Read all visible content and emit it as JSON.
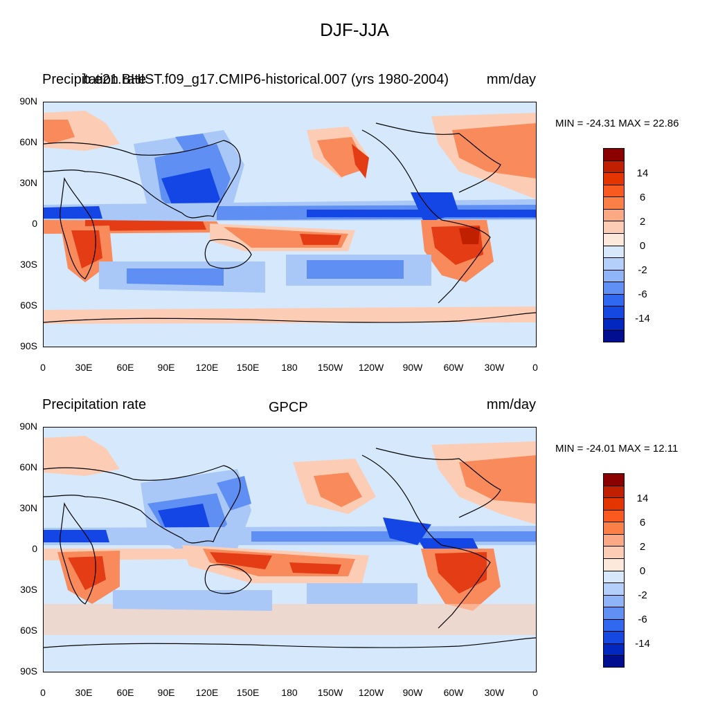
{
  "title": "DJF-JJA",
  "panels": [
    {
      "left_string": "Precipitation rate",
      "center_string": "b.e21.BHIST.f09_g17.CMIP6-historical.007 (yrs 1980-2004)",
      "right_string": "mm/day",
      "min_max": "MIN = -24.31 MAX =  22.86"
    },
    {
      "left_string": "Precipitation rate",
      "center_string": "GPCP",
      "right_string": "mm/day",
      "min_max": "MIN = -24.01 MAX =  12.11"
    }
  ],
  "lat_labels": [
    "90N",
    "60N",
    "30N",
    "0",
    "30S",
    "60S",
    "90S"
  ],
  "lon_labels": [
    "0",
    "30E",
    "60E",
    "90E",
    "120E",
    "150E",
    "180",
    "150W",
    "120W",
    "90W",
    "60W",
    "30W",
    "0"
  ],
  "colorbar": {
    "labels": [
      "14",
      "6",
      "2",
      "0",
      "-2",
      "-6",
      "-14"
    ],
    "colors": [
      "#8b0000",
      "#c02000",
      "#e43400",
      "#f85a20",
      "#fa8048",
      "#fba884",
      "#fccdb4",
      "#fde8dc",
      "#d8e8fb",
      "#b4d0fa",
      "#90b4f8",
      "#6090f4",
      "#3068f0",
      "#1448e0",
      "#0028c0",
      "#000e90"
    ]
  },
  "colors": {
    "ocean_neutral": "#d6e8fb",
    "light_red": "#fccdb4",
    "medium_red": "#f98a5c",
    "strong_red": "#e43c14",
    "light_blue": "#a9c8f8",
    "medium_blue": "#5f8ff2",
    "strong_blue": "#1446e6",
    "coast": "#000000"
  }
}
